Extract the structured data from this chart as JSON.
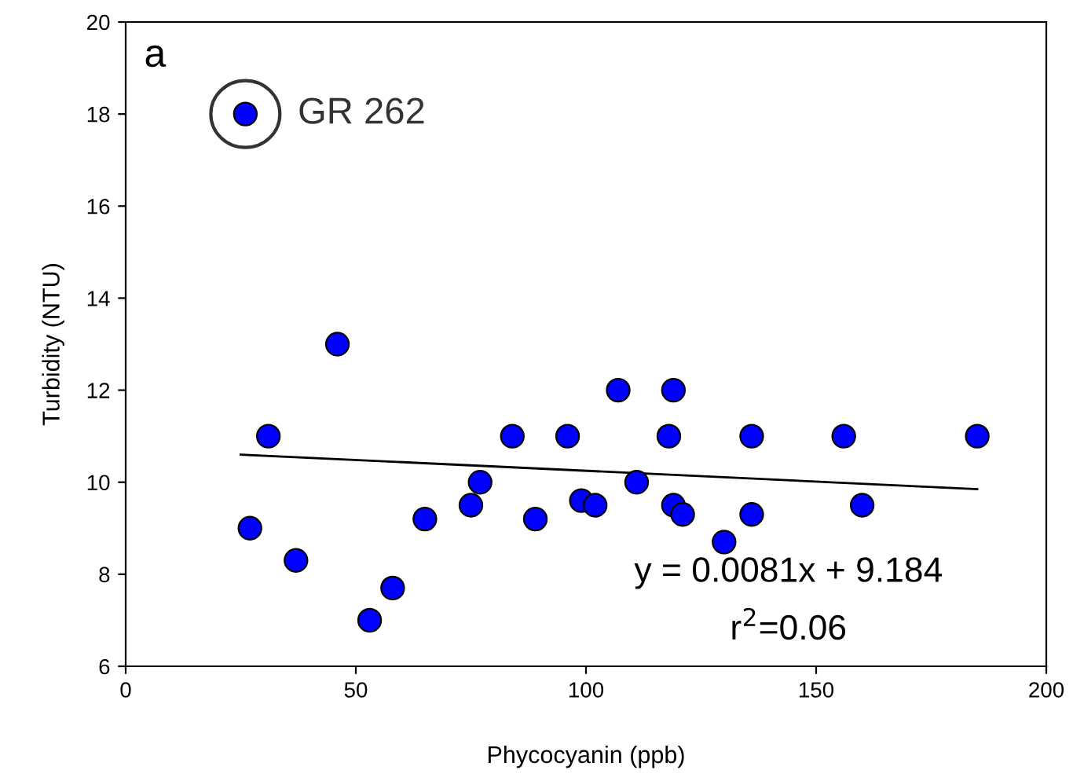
{
  "chart_data": {
    "type": "scatter",
    "xlabel": "Phycocyanin (ppb)",
    "ylabel": "Turbidity (NTU)",
    "xlim": [
      0,
      200
    ],
    "ylim": [
      6,
      20
    ],
    "xticks": [
      0,
      50,
      100,
      150,
      200
    ],
    "yticks": [
      6,
      8,
      10,
      12,
      14,
      16,
      18,
      20
    ],
    "grid": false,
    "legend": false,
    "marker": "circle",
    "series": [
      {
        "color": "#0000ff",
        "x": [
          26,
          27,
          31,
          37,
          46,
          53,
          58,
          65,
          75,
          77,
          84,
          89,
          96,
          99,
          102,
          107,
          111,
          118,
          119,
          119,
          121,
          130,
          136,
          136,
          156,
          160,
          185
        ],
        "values": [
          18,
          9,
          11,
          8.3,
          13,
          7,
          7.7,
          9.2,
          9.5,
          10,
          11,
          9.2,
          11,
          9.6,
          9.5,
          12,
          10,
          11,
          12,
          9.5,
          9.3,
          8.7,
          9.3,
          11,
          11,
          9.5,
          11
        ]
      },
      {
        "type": "line",
        "color": "#000000",
        "line_style": "solid",
        "marker": "none",
        "x": [
          25,
          185
        ],
        "values": [
          10.6,
          9.85
        ]
      }
    ],
    "annotations": [
      "a",
      {
        "text": "GR 262",
        "x": 26,
        "y": 18
      },
      "y = 0.0081x + 9.184",
      "r$^{2}$=0.06"
    ]
  }
}
